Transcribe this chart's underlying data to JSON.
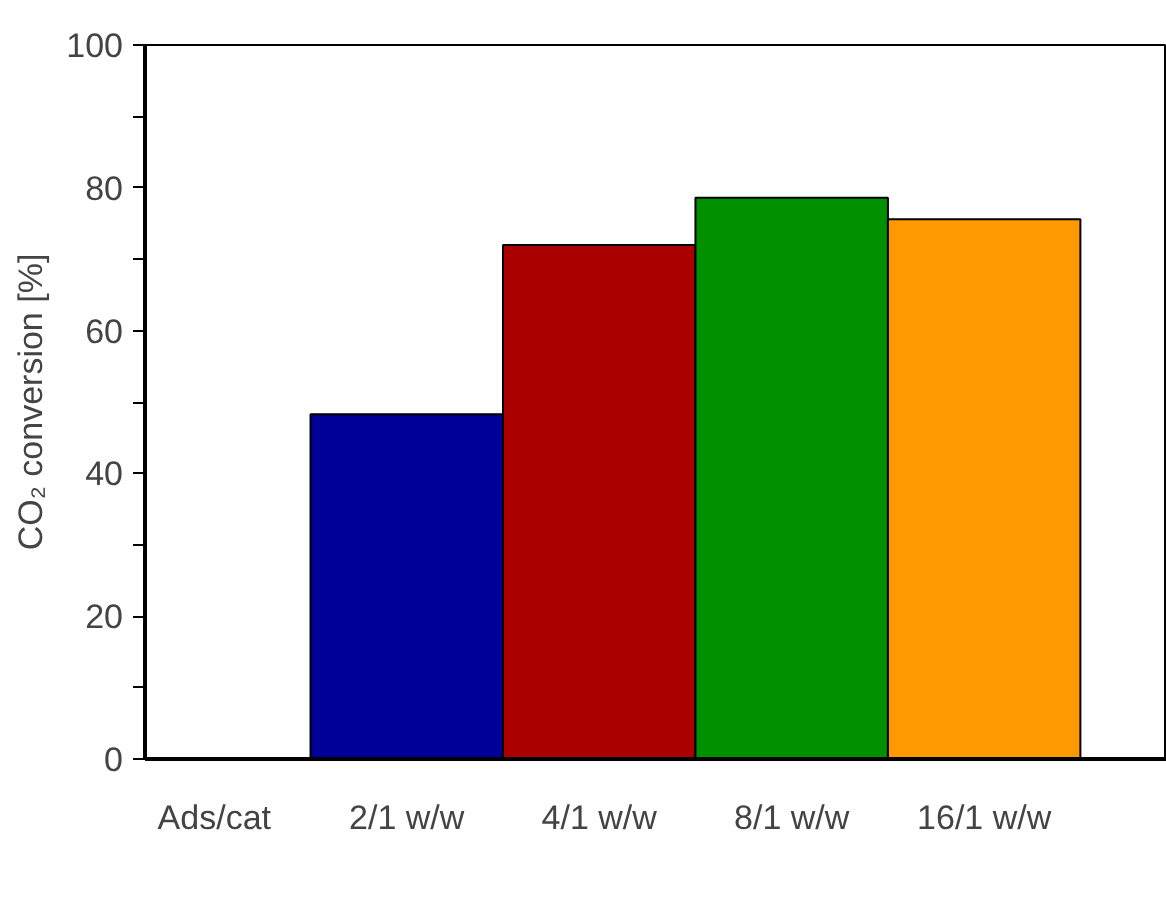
{
  "chart_data": {
    "type": "bar",
    "xlabel": "Ads/cat",
    "ylabel": "CO₂ conversion [%]",
    "categories": [
      "2/1 w/w",
      "4/1 w/w",
      "8/1 w/w",
      "16/1 w/w"
    ],
    "values": [
      48.3,
      72.0,
      78.6,
      75.6
    ],
    "colors": [
      "#000099",
      "#aa0000",
      "#009100",
      "#ff9900"
    ],
    "ylim": [
      0,
      100
    ],
    "yticks": [
      0,
      {
        "value": 10,
        "label": null
      },
      20,
      {
        "value": 30,
        "label": null
      },
      40,
      {
        "value": 50,
        "label": null
      },
      60,
      {
        "value": 70,
        "label": null
      },
      80,
      {
        "value": 90,
        "label": null
      },
      100
    ],
    "grid": false
  }
}
